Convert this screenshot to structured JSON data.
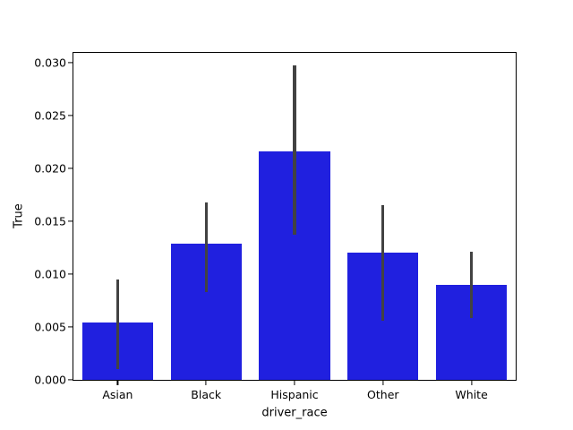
{
  "chart_data": {
    "type": "bar",
    "title": "",
    "xlabel": "driver_race",
    "ylabel": "True",
    "categories": [
      "Asian",
      "Black",
      "Hispanic",
      "Other",
      "White"
    ],
    "values": [
      0.0054,
      0.0129,
      0.0216,
      0.012,
      0.009
    ],
    "error_bars": {
      "low": [
        0.001,
        0.0083,
        0.0137,
        0.0056,
        0.0058
      ],
      "high": [
        0.0095,
        0.0168,
        0.0297,
        0.0165,
        0.0121
      ]
    },
    "yticks": [
      0.0,
      0.005,
      0.01,
      0.015,
      0.02,
      0.025,
      0.03
    ],
    "ytick_labels": [
      "0.000",
      "0.005",
      "0.010",
      "0.015",
      "0.020",
      "0.025",
      "0.030"
    ],
    "ylim": [
      0,
      0.0309
    ],
    "grid": false,
    "legend": null,
    "bar_color": "#2020df",
    "error_color": "#424242",
    "spine_color": "#000000",
    "background_color": "#ffffff"
  }
}
